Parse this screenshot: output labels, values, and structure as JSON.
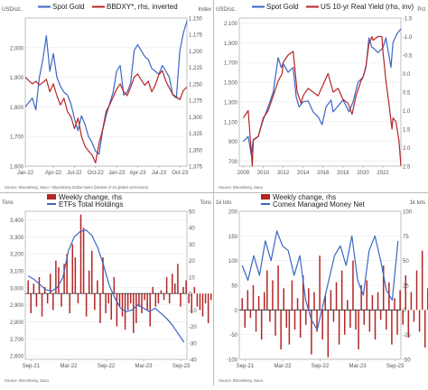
{
  "colors": {
    "blue": "#3b66c4",
    "red": "#b52525",
    "axis": "#555555",
    "grid": "#e9e9e9",
    "zero": "#222222"
  },
  "chart_data": [
    {
      "type": "line",
      "legend": [
        "Spot Gold",
        "BBDXY*, rhs, inverted"
      ],
      "left_unit": "USD/oz.",
      "right_unit": "Index",
      "xlim": [
        0,
        23
      ],
      "x_ticks": [
        {
          "x": 0,
          "label": "Jan-22"
        },
        {
          "x": 4,
          "label": "Apr-22"
        },
        {
          "x": 7,
          "label": "Jul-22"
        },
        {
          "x": 10,
          "label": "Oct-22"
        },
        {
          "x": 13,
          "label": "Jan-23"
        },
        {
          "x": 16,
          "label": "Apr-23"
        },
        {
          "x": 19,
          "label": "Jul-23"
        },
        {
          "x": 22,
          "label": "Oct-23"
        }
      ],
      "left_ylim": [
        1600,
        2100
      ],
      "left_ticks": [
        1600,
        1700,
        1800,
        1900,
        2000
      ],
      "left_tick_labels": [
        "1,600",
        "1,700",
        "1,800",
        "1,900",
        "2,000"
      ],
      "right_ylim": [
        1150,
        1375
      ],
      "right_inverted": true,
      "right_ticks": [
        1150,
        1175,
        1200,
        1225,
        1250,
        1275,
        1300,
        1325,
        1350,
        1375
      ],
      "right_tick_labels": [
        "1,150",
        "1,175",
        "1,200",
        "1,225",
        "1,250",
        "1,275",
        "1,300",
        "1,325",
        "1,350",
        "1,375"
      ],
      "series": [
        {
          "name": "Spot Gold",
          "axis": "left",
          "color": "#3b66c4",
          "x": [
            0,
            1,
            1.5,
            2,
            2.5,
            3,
            3.5,
            4,
            4.5,
            5,
            5.5,
            6,
            6.5,
            7,
            7.5,
            8,
            8.5,
            9,
            9.5,
            10,
            10.5,
            11,
            11.5,
            12,
            12.5,
            13,
            13.5,
            14,
            14.5,
            15,
            15.5,
            16,
            16.5,
            17,
            17.5,
            18,
            18.5,
            19,
            19.5,
            20,
            20.5,
            21,
            21.5,
            22,
            22.5,
            23
          ],
          "y": [
            1800,
            1830,
            1790,
            1900,
            1960,
            2040,
            1920,
            1980,
            1900,
            1870,
            1850,
            1840,
            1810,
            1760,
            1720,
            1770,
            1740,
            1700,
            1680,
            1650,
            1640,
            1720,
            1770,
            1810,
            1850,
            1920,
            1940,
            1840,
            1850,
            1880,
            1990,
            2010,
            1990,
            1970,
            1960,
            1930,
            1920,
            1910,
            1940,
            1920,
            1900,
            1840,
            1830,
            1990,
            2050,
            2090
          ]
        },
        {
          "name": "BBDXY*, rhs, inverted",
          "axis": "right",
          "color": "#b52525",
          "x": [
            0,
            1,
            1.5,
            2,
            2.5,
            3,
            3.5,
            4,
            4.5,
            5,
            5.5,
            6,
            6.5,
            7,
            7.5,
            8,
            8.5,
            9,
            9.5,
            10,
            10.5,
            11,
            11.5,
            12,
            12.5,
            13,
            13.5,
            14,
            14.5,
            15,
            15.5,
            16,
            16.5,
            17,
            17.5,
            18,
            18.5,
            19,
            19.5,
            20,
            20.5,
            21,
            21.5,
            22,
            22.5,
            23
          ],
          "y": [
            1240,
            1250,
            1246,
            1252,
            1248,
            1243,
            1262,
            1250,
            1268,
            1282,
            1272,
            1292,
            1300,
            1318,
            1302,
            1330,
            1345,
            1352,
            1358,
            1370,
            1340,
            1320,
            1292,
            1282,
            1270,
            1258,
            1250,
            1262,
            1268,
            1255,
            1240,
            1235,
            1244,
            1252,
            1246,
            1262,
            1252,
            1236,
            1230,
            1246,
            1256,
            1266,
            1270,
            1274,
            1260,
            1255
          ]
        }
      ],
      "footnote": "Source: Bloomberg, Saxo    * Bloomberg Dollar Index (basket of 10 global currencies)"
    },
    {
      "type": "line",
      "legend": [
        "Spot Gold",
        "US 10-yr Real Yield (rhs, inv)"
      ],
      "left_unit": "USD/oz.",
      "right_unit": "Pct",
      "xlim": [
        2007.6,
        2023.8
      ],
      "x_ticks": [
        {
          "x": 2008,
          "label": "2008"
        },
        {
          "x": 2010,
          "label": "2010"
        },
        {
          "x": 2012,
          "label": "2012"
        },
        {
          "x": 2014,
          "label": "2014"
        },
        {
          "x": 2016,
          "label": "2016"
        },
        {
          "x": 2018,
          "label": "2018"
        },
        {
          "x": 2020,
          "label": "2020"
        },
        {
          "x": 2022,
          "label": "2022"
        }
      ],
      "left_ylim": [
        650,
        2150
      ],
      "left_ticks": [
        700,
        900,
        1100,
        1300,
        1500,
        1700,
        1900,
        2100
      ],
      "left_tick_labels": [
        "700",
        "900",
        "1,100",
        "1,300",
        "1,500",
        "1,700",
        "1,900",
        "2,100"
      ],
      "right_ylim": [
        -1.5,
        2.5
      ],
      "right_inverted": true,
      "right_ticks": [
        -1.5,
        -1.0,
        -0.5,
        0.0,
        0.5,
        1.0,
        1.5,
        2.0,
        2.5
      ],
      "right_tick_labels": [
        "-1.5",
        "-1.0",
        "-0.5",
        "0.0",
        "0.5",
        "1.0",
        "1.5",
        "2.0",
        "2.5"
      ],
      "series": [
        {
          "name": "Spot Gold",
          "axis": "left",
          "color": "#3b66c4",
          "x": [
            2008,
            2008.5,
            2008.8,
            2009,
            2009.5,
            2010,
            2010.5,
            2011,
            2011.5,
            2011.8,
            2012,
            2012.5,
            2013,
            2013.3,
            2013.6,
            2014,
            2014.5,
            2015,
            2015.5,
            2015.9,
            2016.3,
            2016.8,
            2017,
            2017.5,
            2018,
            2018.6,
            2019,
            2019.5,
            2020,
            2020.3,
            2020.6,
            2020.9,
            2021,
            2021.5,
            2022,
            2022.3,
            2022.8,
            2023,
            2023.4,
            2023.8
          ],
          "y": [
            900,
            950,
            760,
            920,
            950,
            1120,
            1250,
            1400,
            1750,
            1650,
            1690,
            1600,
            1650,
            1350,
            1250,
            1300,
            1310,
            1200,
            1150,
            1070,
            1250,
            1320,
            1200,
            1260,
            1320,
            1200,
            1300,
            1500,
            1550,
            1650,
            1950,
            1850,
            1850,
            1800,
            1850,
            1950,
            1650,
            1900,
            1990,
            2040
          ]
        },
        {
          "name": "US 10-yr Real Yield (rhs, inv)",
          "axis": "right",
          "color": "#b52525",
          "x": [
            2008,
            2008.5,
            2008.9,
            2009,
            2009.5,
            2010,
            2010.5,
            2011,
            2011.5,
            2011.9,
            2012,
            2012.5,
            2013,
            2013.4,
            2013.8,
            2014,
            2014.5,
            2015,
            2015.5,
            2016,
            2016.5,
            2017,
            2017.5,
            2018,
            2018.5,
            2018.9,
            2019.3,
            2019.8,
            2020,
            2020.3,
            2020.6,
            2020.9,
            2021,
            2021.5,
            2021.9,
            2022,
            2022.3,
            2022.6,
            2022.9,
            2023,
            2023.3,
            2023.6,
            2023.8
          ],
          "y": [
            1.2,
            1.0,
            2.5,
            1.8,
            1.7,
            1.2,
            1.0,
            0.6,
            0.2,
            0.0,
            -0.3,
            -0.5,
            -0.6,
            0.5,
            0.8,
            0.6,
            0.4,
            0.5,
            0.6,
            0.3,
            0.0,
            0.5,
            0.4,
            0.7,
            0.8,
            1.1,
            0.6,
            0.2,
            0.1,
            -0.2,
            -0.8,
            -1.0,
            -0.9,
            -1.0,
            -1.0,
            -0.6,
            0.2,
            0.8,
            1.5,
            1.2,
            1.3,
            1.8,
            2.5
          ]
        }
      ],
      "footnote": "Source: Bloomberg, Saxo"
    },
    {
      "type": "bar+line",
      "legend": [
        "Weekly change, rhs",
        "ETFs Total Holdings"
      ],
      "left_unit": "Tons",
      "right_unit": "Tons",
      "xlim": [
        0,
        28
      ],
      "x_ticks": [
        {
          "x": 1,
          "label": "Sep-21"
        },
        {
          "x": 7.5,
          "label": "Mar-22"
        },
        {
          "x": 14,
          "label": "Sep-22"
        },
        {
          "x": 20.5,
          "label": "Mar-23"
        },
        {
          "x": 27,
          "label": "Sep-23"
        }
      ],
      "left_ylim": [
        2580,
        3450
      ],
      "left_ticks": [
        2600,
        2700,
        2800,
        2900,
        3000,
        3100,
        3200,
        3300,
        3400
      ],
      "left_tick_labels": [
        "2,600",
        "2,700",
        "2,800",
        "2,900",
        "3,000",
        "3,100",
        "3,200",
        "3,300",
        "3,400"
      ],
      "right_ylim": [
        -40,
        50
      ],
      "right_ticks": [
        -40,
        -30,
        -20,
        -10,
        0,
        10,
        20,
        30,
        40,
        50
      ],
      "right_tick_labels": [
        "-40",
        "-30",
        "-20",
        "-10",
        "0",
        "10",
        "20",
        "30",
        "40",
        "50"
      ],
      "bars": {
        "name": "Weekly change, rhs",
        "axis": "right",
        "color": "#b52525",
        "x_start": 0.5,
        "x_step": 0.48,
        "values": [
          8,
          -12,
          6,
          -8,
          10,
          -14,
          4,
          -6,
          12,
          -10,
          20,
          16,
          -8,
          18,
          24,
          -12,
          30,
          22,
          -6,
          48,
          40,
          -14,
          14,
          26,
          -10,
          8,
          -18,
          22,
          -12,
          -6,
          -16,
          10,
          -20,
          -8,
          -14,
          -22,
          -10,
          -6,
          -24,
          -18,
          -8,
          -12,
          -4,
          -10,
          -20,
          4,
          -8,
          -6,
          2,
          -4,
          10,
          -6,
          12,
          6,
          18,
          -8,
          4,
          8,
          -6,
          -12,
          4,
          -8,
          -10,
          -14,
          -6,
          -18,
          -4,
          -8,
          10,
          -12,
          -4,
          -6,
          -8,
          -10,
          -14,
          -6,
          -4,
          8,
          -8,
          -6,
          -2,
          -14,
          -4,
          -12,
          -38,
          -10,
          -22,
          -6
        ]
      },
      "series": [
        {
          "name": "ETFs Total Holdings",
          "axis": "left",
          "color": "#3b66c4",
          "x": [
            0.5,
            1.5,
            2.5,
            3.5,
            4.5,
            5.5,
            6.5,
            7.5,
            8.5,
            9.5,
            10.5,
            11.5,
            12.5,
            13.5,
            14.5,
            15.5,
            16.5,
            17.5,
            18.5,
            19.5,
            20.5,
            21.5,
            22.5,
            23.5,
            24.5,
            25.5,
            26.5,
            27.5
          ],
          "y": [
            3070,
            3050,
            3020,
            2990,
            2980,
            3000,
            3060,
            3220,
            3300,
            3330,
            3340,
            3310,
            3240,
            3140,
            3020,
            2940,
            2880,
            2860,
            2870,
            2900,
            2880,
            2860,
            2880,
            2850,
            2820,
            2780,
            2730,
            2680
          ]
        }
      ],
      "footnote": "Source: Bloomberg, Saxo"
    },
    {
      "type": "bar+line",
      "legend": [
        "Weekly change, rhs",
        "Comex Managed Money Net"
      ],
      "left_unit": "1k lots",
      "right_unit": "1k lots",
      "xlim": [
        0,
        28
      ],
      "x_ticks": [
        {
          "x": 1,
          "label": "Sep-21"
        },
        {
          "x": 7.5,
          "label": "Mar-22"
        },
        {
          "x": 14,
          "label": "Sep-22"
        },
        {
          "x": 20.5,
          "label": "Mar-23"
        },
        {
          "x": 27,
          "label": "Sep-23"
        }
      ],
      "left_ylim": [
        -100,
        200
      ],
      "left_ticks": [
        -100,
        -50,
        0,
        50,
        100,
        150,
        200
      ],
      "left_tick_labels": [
        "-100",
        "-50",
        "0",
        "50",
        "100",
        "150",
        "200"
      ],
      "right_ylim": [
        -50,
        100
      ],
      "right_ticks": [
        -50,
        -25,
        0,
        25,
        50,
        75,
        100
      ],
      "right_tick_labels": [
        "-50",
        "-25",
        "0",
        "25",
        "50",
        "75",
        "100"
      ],
      "bars": {
        "name": "Weekly change, rhs",
        "axis": "right",
        "color": "#b52525",
        "x_start": 0.5,
        "x_step": 0.48,
        "values": [
          12,
          -18,
          20,
          -8,
          25,
          -22,
          14,
          -30,
          18,
          40,
          -12,
          30,
          -26,
          45,
          -40,
          22,
          -18,
          -35,
          30,
          -20,
          12,
          -28,
          35,
          -15,
          22,
          -45,
          18,
          -22,
          55,
          -30,
          15,
          -48,
          20,
          -12,
          28,
          -35,
          40,
          -25,
          10,
          -18,
          50,
          -20,
          -40,
          25,
          -15,
          30,
          -22,
          15,
          -30,
          18,
          -10,
          45,
          -20,
          28,
          -35,
          12,
          -25,
          20,
          -15,
          35,
          -28,
          18,
          -12,
          40,
          -22,
          60,
          -38,
          22,
          -18,
          30,
          -42,
          15,
          -20,
          25,
          -30,
          45,
          -15,
          20,
          -35,
          28,
          -10,
          55,
          -25,
          30,
          -20,
          50,
          18,
          35
        ]
      },
      "series": [
        {
          "name": "Comex Managed Money Net",
          "axis": "left",
          "color": "#3b66c4",
          "x": [
            0.5,
            1.5,
            2.5,
            3.5,
            4.5,
            5.5,
            6.5,
            7.5,
            8.5,
            9.5,
            10.5,
            11.5,
            12.5,
            13.5,
            14.5,
            15.5,
            16.5,
            17.5,
            18.5,
            19.5,
            20.5,
            21.5,
            22.5,
            23.5,
            24.5,
            25.5,
            26.5,
            27.5
          ],
          "y": [
            90,
            60,
            110,
            70,
            140,
            100,
            160,
            130,
            120,
            70,
            110,
            20,
            -20,
            -40,
            10,
            60,
            110,
            130,
            90,
            150,
            60,
            30,
            120,
            150,
            100,
            40,
            20,
            140
          ]
        }
      ],
      "footnote": "Source: Bloomberg, Saxo"
    }
  ]
}
